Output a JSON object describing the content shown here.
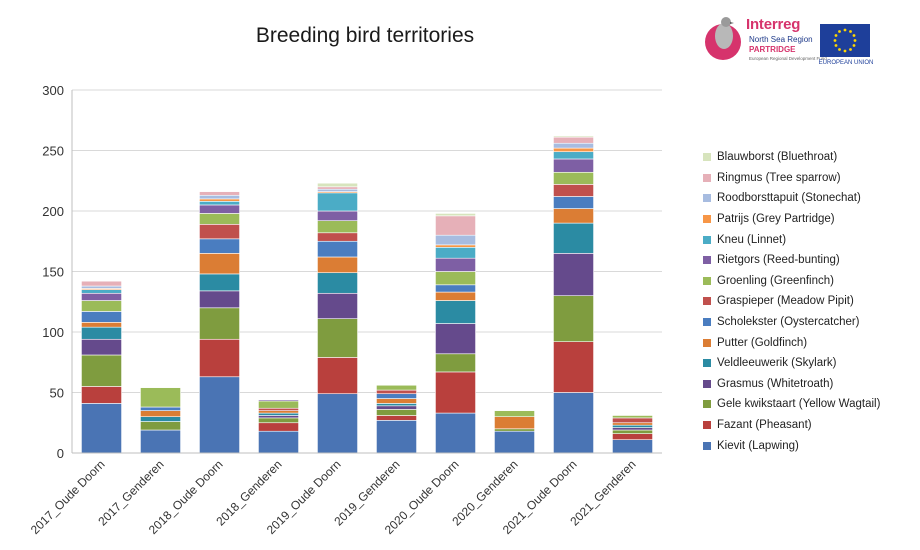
{
  "chart_data": {
    "type": "bar",
    "stacked": true,
    "title": "Breeding bird territories",
    "xlabel": "",
    "ylabel": "",
    "ylim": [
      0,
      300
    ],
    "yticks": [
      0,
      50,
      100,
      150,
      200,
      250,
      300
    ],
    "grid": true,
    "legend_position": "right",
    "categories": [
      "2017_Oude Doorn",
      "2017_Genderen",
      "2018_Oude Doorn",
      "2018_Genderen",
      "2019_Oude Doorn",
      "2019_Genderen",
      "2020_Oude Doorn",
      "2020_Genderen",
      "2021_Oude Doorn",
      "2021_Genderen"
    ],
    "series": [
      {
        "name": "Kievit (Lapwing)",
        "color": "#4a74b4",
        "values": [
          41,
          19,
          63,
          18,
          49,
          27,
          33,
          18,
          50,
          11
        ]
      },
      {
        "name": "Fazant (Pheasant)",
        "color": "#b9403d",
        "values": [
          14,
          0,
          31,
          7,
          30,
          4,
          34,
          0,
          42,
          5
        ]
      },
      {
        "name": "Gele kwikstaart (Yellow Wagtail)",
        "color": "#7f9c3f",
        "values": [
          26,
          7,
          26,
          4,
          32,
          5,
          15,
          2,
          38,
          3
        ]
      },
      {
        "name": "Grasmus (Whitetroath)",
        "color": "#654a8c",
        "values": [
          13,
          0,
          14,
          2,
          21,
          3,
          25,
          0,
          35,
          2
        ]
      },
      {
        "name": "Veldleeuwerik (Skylark)",
        "color": "#2b8ba3",
        "values": [
          10,
          4,
          14,
          2,
          17,
          2,
          19,
          0,
          25,
          2
        ]
      },
      {
        "name": "Putter (Goldfinch)",
        "color": "#db7d34",
        "values": [
          4,
          5,
          17,
          2,
          13,
          4,
          7,
          10,
          12,
          2
        ]
      },
      {
        "name": "Scholekster (Oystercatcher)",
        "color": "#4a7dc0",
        "values": [
          9,
          3,
          12,
          0,
          13,
          4,
          6,
          0,
          10,
          0
        ]
      },
      {
        "name": "Graspieper (Meadow Pipit)",
        "color": "#c0504d",
        "values": [
          0,
          0,
          12,
          2,
          7,
          3,
          0,
          0,
          10,
          4
        ]
      },
      {
        "name": "Groenling (Greenfinch)",
        "color": "#9bbb59",
        "values": [
          9,
          16,
          9,
          6,
          10,
          4,
          11,
          5,
          10,
          2
        ]
      },
      {
        "name": "Rietgors (Reed-bunting)",
        "color": "#7e5fa4",
        "values": [
          6,
          0,
          7,
          1,
          8,
          0,
          11,
          0,
          11,
          0
        ]
      },
      {
        "name": "Kneu (Linnet)",
        "color": "#4bacc6",
        "values": [
          3,
          0,
          3,
          0,
          15,
          0,
          9,
          0,
          6,
          0
        ]
      },
      {
        "name": "Patrijs (Grey Partridge)",
        "color": "#f79646",
        "values": [
          1,
          0,
          2,
          0,
          1,
          0,
          2,
          0,
          3,
          0
        ]
      },
      {
        "name": "Roodborsttapuit (Stonechat)",
        "color": "#a7bce0",
        "values": [
          2,
          0,
          3,
          0,
          2,
          0,
          8,
          0,
          4,
          0
        ]
      },
      {
        "name": "Ringmus (Tree sparrow)",
        "color": "#e6b0b8",
        "values": [
          4,
          0,
          3,
          0,
          2,
          0,
          16,
          0,
          5,
          0
        ]
      },
      {
        "name": "Blauwborst (Bluethroat)",
        "color": "#d7e4bd",
        "values": [
          0,
          0,
          0,
          0,
          3,
          0,
          2,
          0,
          1,
          0
        ]
      }
    ]
  },
  "logo": {
    "brand": "Interreg",
    "line2": "North Sea Region",
    "line3": "PARTRIDGE",
    "line4": "European Regional Development Fund",
    "eu_label": "EUROPEAN UNION"
  }
}
